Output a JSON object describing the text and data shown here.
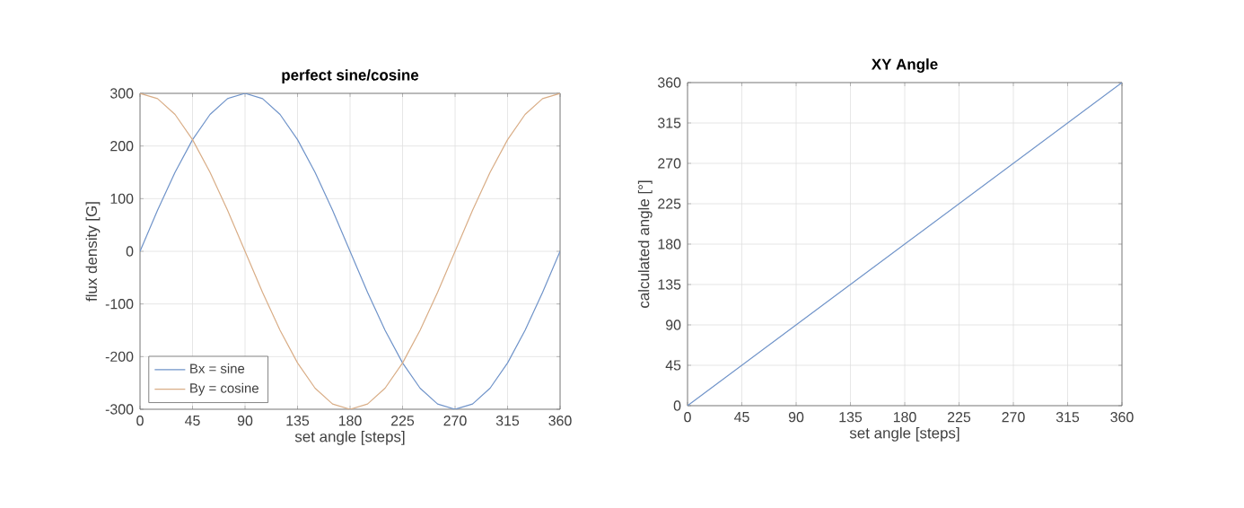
{
  "chart_data": [
    {
      "type": "line",
      "title": "perfect sine/cosine",
      "xlabel": "set angle [steps]",
      "ylabel": "flux density [G]",
      "x": [
        0,
        15,
        30,
        45,
        60,
        75,
        90,
        105,
        120,
        135,
        150,
        165,
        180,
        195,
        210,
        225,
        240,
        255,
        270,
        285,
        300,
        315,
        330,
        345,
        360
      ],
      "series": [
        {
          "name": "Bx = sine",
          "color": "#6f93c9",
          "values": [
            0,
            78,
            150,
            212,
            260,
            290,
            300,
            290,
            260,
            212,
            150,
            78,
            0,
            -78,
            -150,
            -212,
            -260,
            -290,
            -300,
            -290,
            -260,
            -212,
            -150,
            -78,
            0
          ]
        },
        {
          "name": "By = cosine",
          "color": "#d9ad86",
          "values": [
            300,
            290,
            260,
            212,
            150,
            78,
            0,
            -78,
            -150,
            -212,
            -260,
            -290,
            -300,
            -290,
            -260,
            -212,
            -150,
            -78,
            0,
            78,
            150,
            212,
            260,
            290,
            300
          ]
        }
      ],
      "xlim": [
        0,
        360
      ],
      "xticks": [
        0,
        45,
        90,
        135,
        180,
        225,
        270,
        315,
        360
      ],
      "ylim": [
        -300,
        300
      ],
      "yticks": [
        -300,
        -200,
        -100,
        0,
        100,
        200,
        300
      ],
      "grid": true,
      "legend": "bottom left"
    },
    {
      "type": "line",
      "title": "XY Angle",
      "xlabel": "set angle [steps]",
      "ylabel": "calculated angle [°]",
      "x": [
        0,
        360
      ],
      "series": [
        {
          "color": "#6f93c9",
          "values": [
            0,
            360
          ]
        }
      ],
      "xlim": [
        0,
        360
      ],
      "xticks": [
        0,
        45,
        90,
        135,
        180,
        225,
        270,
        315,
        360
      ],
      "ylim": [
        0,
        360
      ],
      "yticks": [
        0,
        45,
        90,
        135,
        180,
        225,
        270,
        315,
        360
      ],
      "grid": true
    }
  ]
}
